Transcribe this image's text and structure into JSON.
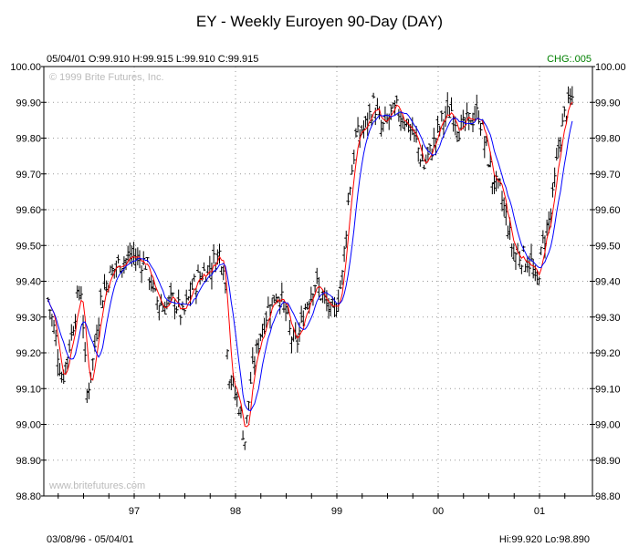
{
  "chart_data": {
    "type": "ohlc-bar",
    "title": "EY - Weekly Euroyen 90-Day (DAY)",
    "last_bar": "05/04/01 O:99.910 H:99.915 L:99.910 C:99.915",
    "change": "CHG:.005",
    "copyright": "© 1999 Brite Futures, Inc.",
    "watermark": "www.britefutures.com",
    "date_range": "03/08/96 - 05/04/01",
    "hi_lo": "Hi:99.920 Lo:98.890",
    "ylim": [
      98.8,
      100.0
    ],
    "y_ticks": [
      "100.00",
      "99.90",
      "99.80",
      "99.70",
      "99.60",
      "99.50",
      "99.40",
      "99.30",
      "99.20",
      "99.10",
      "99.00",
      "98.90",
      "98.80"
    ],
    "x_ticks": [
      {
        "label": "97",
        "year": 1997
      },
      {
        "label": "98",
        "year": 1998
      },
      {
        "label": "99",
        "year": 1999
      },
      {
        "label": "00",
        "year": 2000
      },
      {
        "label": "01",
        "year": 2001
      }
    ],
    "x_range_years": [
      1996.0,
      2001.6
    ],
    "moving_averages": [
      {
        "period": 4,
        "color": "#ff0000"
      },
      {
        "period": 9,
        "color": "#0000ff"
      }
    ],
    "bar_color": "#000000",
    "approx_close_path": [
      [
        1996.15,
        99.35
      ],
      [
        1996.22,
        99.25
      ],
      [
        1996.29,
        99.12
      ],
      [
        1996.38,
        99.25
      ],
      [
        1996.44,
        99.35
      ],
      [
        1996.48,
        99.38
      ],
      [
        1996.53,
        99.08
      ],
      [
        1996.58,
        99.15
      ],
      [
        1996.67,
        99.35
      ],
      [
        1996.76,
        99.42
      ],
      [
        1996.85,
        99.45
      ],
      [
        1996.99,
        99.47
      ],
      [
        1997.12,
        99.45
      ],
      [
        1997.21,
        99.35
      ],
      [
        1997.3,
        99.33
      ],
      [
        1997.39,
        99.35
      ],
      [
        1997.48,
        99.3
      ],
      [
        1997.57,
        99.38
      ],
      [
        1997.66,
        99.42
      ],
      [
        1997.75,
        99.44
      ],
      [
        1997.84,
        99.48
      ],
      [
        1997.89,
        99.45
      ],
      [
        1997.93,
        99.15
      ],
      [
        1997.98,
        99.1
      ],
      [
        1998.04,
        99.05
      ],
      [
        1998.09,
        98.95
      ],
      [
        1998.15,
        99.12
      ],
      [
        1998.24,
        99.25
      ],
      [
        1998.33,
        99.33
      ],
      [
        1998.42,
        99.37
      ],
      [
        1998.49,
        99.32
      ],
      [
        1998.54,
        99.25
      ],
      [
        1998.6,
        99.22
      ],
      [
        1998.69,
        99.33
      ],
      [
        1998.78,
        99.4
      ],
      [
        1998.87,
        99.35
      ],
      [
        1998.96,
        99.3
      ],
      [
        1999.05,
        99.4
      ],
      [
        1999.12,
        99.65
      ],
      [
        1999.19,
        99.8
      ],
      [
        1999.28,
        99.83
      ],
      [
        1999.37,
        99.9
      ],
      [
        1999.44,
        99.82
      ],
      [
        1999.5,
        99.85
      ],
      [
        1999.59,
        99.88
      ],
      [
        1999.68,
        99.85
      ],
      [
        1999.77,
        99.8
      ],
      [
        1999.86,
        99.72
      ],
      [
        1999.95,
        99.78
      ],
      [
        2000.04,
        99.85
      ],
      [
        2000.13,
        99.88
      ],
      [
        2000.22,
        99.82
      ],
      [
        2000.31,
        99.85
      ],
      [
        2000.4,
        99.87
      ],
      [
        2000.49,
        99.75
      ],
      [
        2000.54,
        99.68
      ],
      [
        2000.61,
        99.65
      ],
      [
        2000.67,
        99.58
      ],
      [
        2000.74,
        99.48
      ],
      [
        2000.83,
        99.47
      ],
      [
        2000.92,
        99.45
      ],
      [
        2000.97,
        99.38
      ],
      [
        2001.03,
        99.5
      ],
      [
        2001.12,
        99.6
      ],
      [
        2001.19,
        99.78
      ],
      [
        2001.26,
        99.88
      ],
      [
        2001.34,
        99.915
      ]
    ]
  }
}
